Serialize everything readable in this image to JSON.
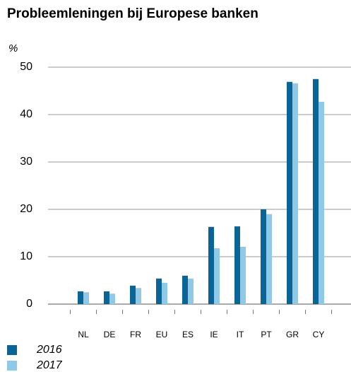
{
  "chart_data": {
    "type": "bar",
    "title": "Probleemleningen bij Europese banken",
    "y_label": "%",
    "categories": [
      "NL",
      "DE",
      "FR",
      "EU",
      "ES",
      "IE",
      "IT",
      "PT",
      "GR",
      "CY"
    ],
    "series": [
      {
        "name": "2016",
        "color": "#0a6496",
        "values": [
          2.7,
          2.7,
          3.9,
          5.4,
          6.0,
          16.3,
          16.4,
          20.0,
          46.9,
          47.5
        ]
      },
      {
        "name": "2017",
        "color": "#8ecae8",
        "values": [
          2.5,
          2.2,
          3.4,
          4.5,
          5.4,
          11.8,
          12.1,
          19.0,
          46.6,
          42.7
        ]
      }
    ],
    "ylim": [
      0,
      50
    ],
    "yticks": [
      0,
      10,
      20,
      30,
      40,
      50
    ],
    "grid": true
  }
}
